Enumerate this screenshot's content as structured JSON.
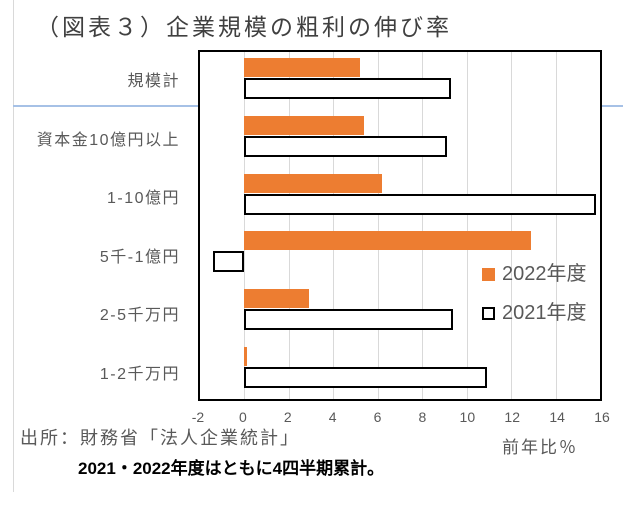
{
  "title": "（図表３）企業規模の粗利の伸び率",
  "source_line": "出所：財務省「法人企業統計」",
  "note_line": "2021・2022年度はともに4四半期累計。",
  "colors": {
    "accent_orange": "#ED7D31",
    "text_gray": "#595959",
    "gridline": "#D9D9D9",
    "divider_blue": "#A6C1E6"
  },
  "chart_data": {
    "type": "bar",
    "orientation": "horizontal",
    "title": "（図表３）企業規模の粗利の伸び率",
    "categories": [
      "規模計",
      "資本金10億円以上",
      "1-10億円",
      "5千-1億円",
      "2-5千万円",
      "1-2千万円"
    ],
    "series": [
      {
        "name": "2022年度",
        "color": "#ED7D31",
        "values": [
          5.2,
          5.4,
          6.2,
          12.9,
          2.9,
          0.1
        ]
      },
      {
        "name": "2021年度",
        "color": "#FFFFFF",
        "border": "#000000",
        "values": [
          9.3,
          9.1,
          15.8,
          -1.4,
          9.4,
          10.9
        ]
      }
    ],
    "xlim": [
      -2,
      16
    ],
    "xticks": [
      -2,
      0,
      2,
      4,
      6,
      8,
      10,
      12,
      14,
      16
    ],
    "xlabel": "前年比％",
    "grid": true,
    "legend_position": "inside-right"
  }
}
